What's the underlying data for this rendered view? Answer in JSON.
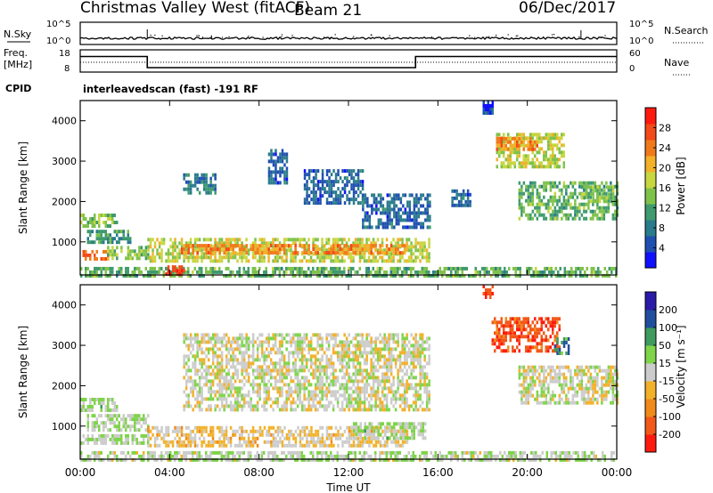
{
  "header": {
    "title": "Christmas Valley West (fitACF)",
    "beam": "Beam 21",
    "date": "06/Dec/2017"
  },
  "nsky_panel": {
    "left_label": "N.Sky",
    "right_label": "N.Search",
    "ticks_left": [
      "10^5",
      "10^0"
    ],
    "ticks_right": [
      "10^5",
      "10^0"
    ]
  },
  "freq_panel": {
    "left_label_1": "Freq.",
    "left_label_2": "[MHz]",
    "ticks_left": [
      "18",
      "8"
    ],
    "ticks_right": [
      "60",
      "0"
    ],
    "right_label": "Nave",
    "frequency_mhz": [
      {
        "start_hour": 0,
        "end_hour": 3,
        "value": 15
      },
      {
        "start_hour": 3,
        "end_hour": 15,
        "value": 10
      },
      {
        "start_hour": 15,
        "end_hour": 24,
        "value": 15
      }
    ]
  },
  "cpid": {
    "label": "CPID",
    "value": "interleavedscan (fast) -191 RF"
  },
  "colors": {
    "power_scale": [
      "#1010ff",
      "#1f4fb0",
      "#2a7b8c",
      "#3f9a6e",
      "#7fc24a",
      "#c8d640",
      "#f2b12a",
      "#f07a1a",
      "#f24a18",
      "#ff1a10"
    ],
    "velocity_scale": [
      "#ff1a10",
      "#f25818",
      "#f08a1a",
      "#f2b12a",
      "#cccccc",
      "#7fd44a",
      "#3f9a5e",
      "#1f4f9c",
      "#2a1aa8"
    ]
  },
  "chart_data": [
    {
      "type": "heatmap",
      "name": "power",
      "xlabel": "",
      "ylabel": "Slant Range [km]",
      "colorbar_label": "Power [dB]",
      "colorbar_ticks": [
        "4",
        "8",
        "12",
        "16",
        "20",
        "24",
        "28"
      ],
      "colorbar_range": [
        0,
        30
      ],
      "xlim_hours": [
        0,
        24
      ],
      "ylim_km": [
        180,
        4500
      ],
      "yticks": [
        "1000",
        "2000",
        "3000",
        "4000"
      ],
      "regions": [
        {
          "t0": 0.0,
          "t1": 1.6,
          "r0": 1400,
          "r1": 1700,
          "power": 14
        },
        {
          "t0": 0.3,
          "t1": 2.2,
          "r0": 1000,
          "r1": 1300,
          "power": 10
        },
        {
          "t0": 0.0,
          "t1": 1.2,
          "r0": 550,
          "r1": 800,
          "power": 24
        },
        {
          "t0": 1.2,
          "t1": 3.0,
          "r0": 600,
          "r1": 900,
          "power": 14
        },
        {
          "t0": 3.0,
          "t1": 15.6,
          "r0": 550,
          "r1": 1100,
          "power": 16
        },
        {
          "t0": 4.5,
          "t1": 14.6,
          "r0": 700,
          "r1": 950,
          "power": 22
        },
        {
          "t0": 0.0,
          "t1": 24.0,
          "r0": 180,
          "r1": 380,
          "power": 12
        },
        {
          "t0": 3.8,
          "t1": 4.6,
          "r0": 220,
          "r1": 420,
          "power": 28
        },
        {
          "t0": 18.6,
          "t1": 21.6,
          "r0": 2900,
          "r1": 3700,
          "power": 16
        },
        {
          "t0": 18.6,
          "t1": 20.4,
          "r0": 3300,
          "r1": 3600,
          "power": 22
        },
        {
          "t0": 19.6,
          "t1": 24.0,
          "r0": 1600,
          "r1": 2500,
          "power": 12
        },
        {
          "t0": 22.4,
          "t1": 23.8,
          "r0": 2000,
          "r1": 2400,
          "power": 14
        },
        {
          "t0": 4.6,
          "t1": 6.0,
          "r0": 2200,
          "r1": 2700,
          "power": 8
        },
        {
          "t0": 8.4,
          "t1": 9.2,
          "r0": 2500,
          "r1": 3300,
          "power": 6
        },
        {
          "t0": 10.0,
          "t1": 12.6,
          "r0": 2000,
          "r1": 2800,
          "power": 6
        },
        {
          "t0": 12.6,
          "t1": 15.6,
          "r0": 1400,
          "r1": 2200,
          "power": 6
        },
        {
          "t0": 16.6,
          "t1": 17.4,
          "r0": 1900,
          "r1": 2300,
          "power": 6
        },
        {
          "t0": 18.0,
          "t1": 18.4,
          "r0": 4200,
          "r1": 4500,
          "power": 4
        }
      ]
    },
    {
      "type": "heatmap",
      "name": "velocity",
      "xlabel": "Time UT",
      "ylabel": "Slant Range [km]",
      "colorbar_label": "Velocity [m s⁻¹]",
      "colorbar_ticks": [
        "-200",
        "-100",
        "-50",
        "-15",
        "15",
        "50",
        "100",
        "200"
      ],
      "colorbar_range": [
        -250,
        250
      ],
      "xlim_hours": [
        0,
        24
      ],
      "ylim_km": [
        180,
        4500
      ],
      "xticks": [
        "00:00",
        "04:00",
        "08:00",
        "12:00",
        "16:00",
        "20:00",
        "00:00"
      ],
      "yticks": [
        "1000",
        "2000",
        "3000",
        "4000"
      ],
      "regions": [
        {
          "t0": 0.0,
          "t1": 1.6,
          "r0": 1400,
          "r1": 1700,
          "velocity": 30
        },
        {
          "t0": 0.3,
          "t1": 3.0,
          "r0": 900,
          "r1": 1300,
          "velocity": 30
        },
        {
          "t0": 0.0,
          "t1": 3.0,
          "r0": 550,
          "r1": 800,
          "velocity": 30
        },
        {
          "t0": 3.0,
          "t1": 8.0,
          "r0": 550,
          "r1": 1000,
          "velocity": -40
        },
        {
          "t0": 8.0,
          "t1": 14.6,
          "r0": 550,
          "r1": 1000,
          "velocity": -30
        },
        {
          "t0": 12.0,
          "t1": 15.4,
          "r0": 700,
          "r1": 1100,
          "velocity": 30
        },
        {
          "t0": 0.0,
          "t1": 24.0,
          "r0": 180,
          "r1": 380,
          "velocity": 20
        },
        {
          "t0": 18.4,
          "t1": 21.4,
          "r0": 2900,
          "r1": 3700,
          "velocity": -180
        },
        {
          "t0": 21.2,
          "t1": 21.8,
          "r0": 2800,
          "r1": 3200,
          "velocity": 120
        },
        {
          "t0": 19.6,
          "t1": 24.0,
          "r0": 1600,
          "r1": 2500,
          "velocity": 0
        },
        {
          "t0": 4.6,
          "t1": 15.6,
          "r0": 1400,
          "r1": 3300,
          "velocity": 0
        },
        {
          "t0": 18.0,
          "t1": 18.4,
          "r0": 4200,
          "r1": 4500,
          "velocity": -200
        }
      ]
    }
  ]
}
